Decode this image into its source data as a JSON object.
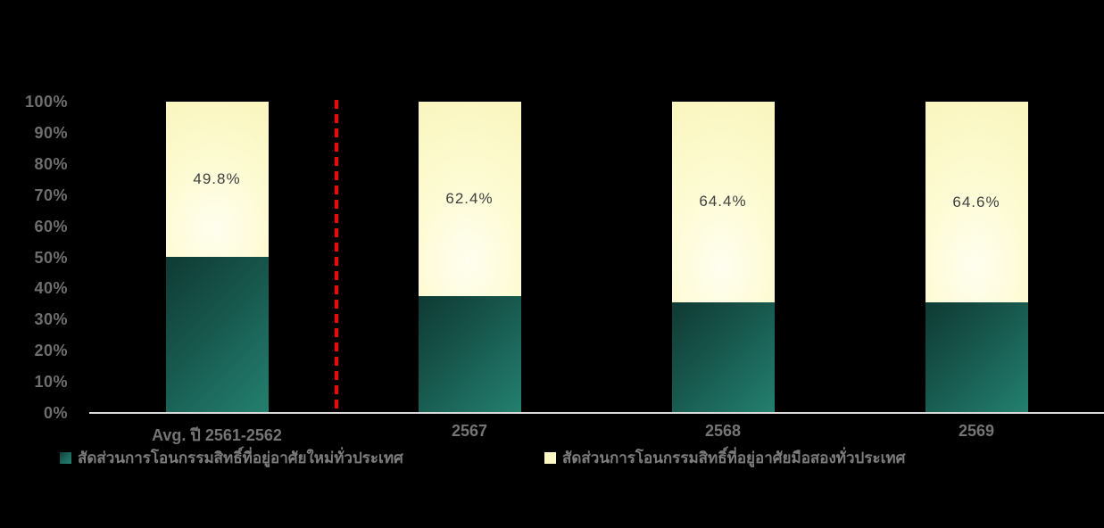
{
  "canvas": {
    "background": "#000000"
  },
  "chart_data": {
    "type": "bar",
    "stacked": true,
    "orientation": "vertical",
    "title": "",
    "xlabel": "",
    "ylabel": "",
    "ylim": [
      0,
      100
    ],
    "ytick_labels": [
      "0%",
      "10%",
      "20%",
      "30%",
      "40%",
      "50%",
      "60%",
      "70%",
      "80%",
      "90%",
      "100%"
    ],
    "grid": false,
    "legend_position": "bottom",
    "categories": [
      "Avg. ปี 2561-2562",
      "2567",
      "2568",
      "2569"
    ],
    "series": [
      {
        "name": "สัดส่วนการโอนกรรมสิทธิ์ที่อยู่อาศัยใหม่ทั่วประเทศ",
        "values": [
          50.2,
          37.6,
          35.6,
          35.4
        ],
        "color": "#1d6c60",
        "data_labels": [
          "",
          "",
          "",
          ""
        ]
      },
      {
        "name": "สัดส่วนการโอนกรรมสิทธิ์ที่อยู่อาศัยมือสองทั่วประเทศ",
        "values": [
          49.8,
          62.4,
          64.4,
          64.6
        ],
        "color": "#fbf8c6",
        "data_labels": [
          "49.8%",
          "62.4%",
          "64.4%",
          "64.6%"
        ]
      }
    ],
    "annotations": {
      "divider_line": {
        "type": "vertical-dashed-line",
        "color": "#fe0000",
        "position": "after first category"
      }
    },
    "styles": {
      "axis_line_color": "#d9d9d9",
      "tick_label_color": "#6e6e6e",
      "category_label_color": "#757575",
      "legend_label_color": "#7d7d7d",
      "data_label_color": "#3f3f3f"
    }
  }
}
